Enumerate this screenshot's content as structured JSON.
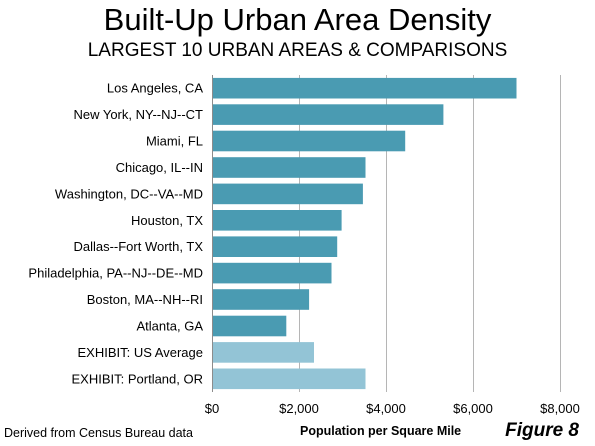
{
  "chart_data": {
    "type": "bar",
    "orientation": "horizontal",
    "title": "Built-Up Urban Area Density",
    "subtitle": "LARGEST 10 URBAN AREAS & COMPARISONS",
    "xlabel": "Population per Square Mile",
    "ylabel": "",
    "xlim": [
      0,
      8000
    ],
    "x_ticks": [
      "$0",
      "$2,000",
      "$4,000",
      "$6,000",
      "$8,000"
    ],
    "x_tick_values": [
      0,
      2000,
      4000,
      6000,
      8000
    ],
    "grid": "vertical",
    "categories": [
      "Los Angeles, CA",
      "New York, NY--NJ--CT",
      "Miami, FL",
      "Chicago, IL--IN",
      "Washington, DC--VA--MD",
      "Houston, TX",
      "Dallas--Fort Worth, TX",
      "Philadelphia, PA--NJ--DE--MD",
      "Boston, MA--NH--RI",
      "Atlanta, GA",
      "EXHIBIT: US Average",
      "EXHIBIT: Portland, OR"
    ],
    "values": [
      6999,
      5319,
      4442,
      3528,
      3470,
      2979,
      2879,
      2746,
      2232,
      1707,
      2345,
      3528
    ],
    "colors": [
      "#4a9bb2",
      "#4a9bb2",
      "#4a9bb2",
      "#4a9bb2",
      "#4a9bb2",
      "#4a9bb2",
      "#4a9bb2",
      "#4a9bb2",
      "#4a9bb2",
      "#4a9bb2",
      "#93c4d6",
      "#93c4d6"
    ]
  },
  "footnote": "Derived from Census Bureau data",
  "figure_label": "Figure 8"
}
